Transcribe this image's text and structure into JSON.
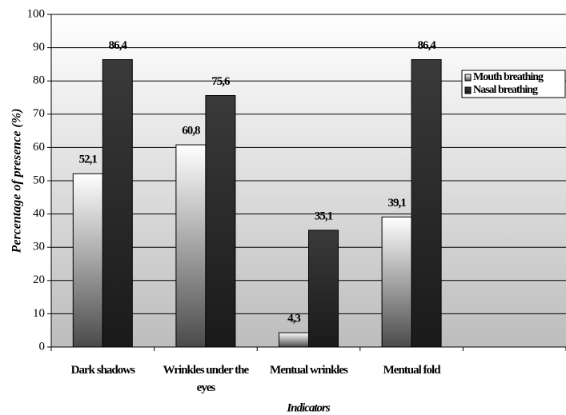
{
  "chart_data": {
    "type": "bar",
    "y_label": "Percentage of presence (%)",
    "x_label": "Indicators",
    "categories": [
      "Dark shadows",
      "Wrinkles under the eyes",
      "Mentual wrinkles",
      "Mentual fold",
      null
    ],
    "series": [
      {
        "name": "Mouth breathing",
        "color": "#ffffff",
        "values": [
          52.1,
          60.8,
          4.3,
          39.1,
          null
        ],
        "value_labels": [
          "52,1",
          "60,8",
          "4,3",
          "39,1",
          null
        ]
      },
      {
        "name": "Nasal breathing",
        "color": "#3a3a3a",
        "values": [
          86.4,
          75.6,
          35.1,
          86.4,
          null
        ],
        "value_labels": [
          "86,4",
          "75,6",
          "35,1",
          "86,4",
          null
        ]
      }
    ],
    "ylim": [
      0,
      100
    ],
    "yticks": [
      0,
      10,
      20,
      30,
      40,
      50,
      60,
      70,
      80,
      90,
      100
    ],
    "grid": true,
    "legend": "upper right"
  }
}
